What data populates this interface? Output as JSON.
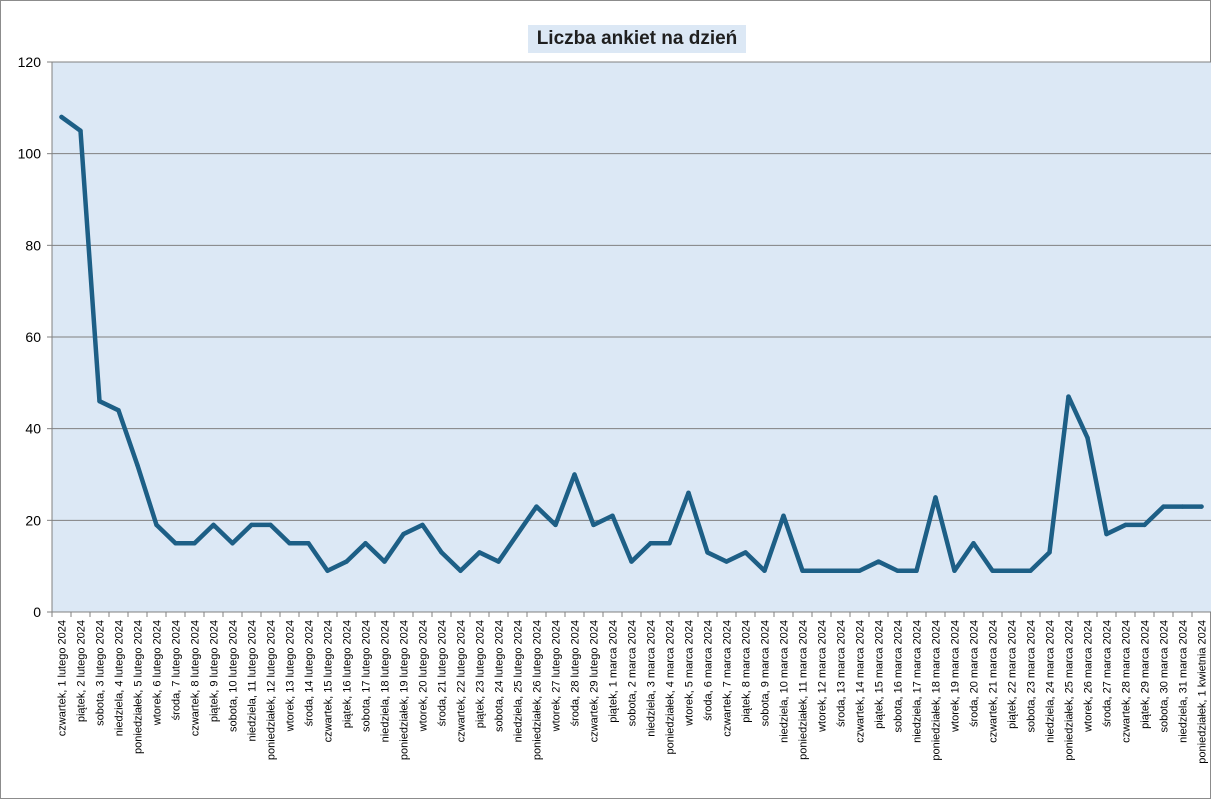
{
  "chart_data": {
    "type": "line",
    "title": "Liczba ankiet na dzień",
    "xlabel": "",
    "ylabel": "",
    "ylim": [
      0,
      120
    ],
    "yticks": [
      "0",
      "20",
      "40",
      "60",
      "80",
      "100",
      "120"
    ],
    "grid": true,
    "legend": "none",
    "colors": {
      "line": "#1d5f86",
      "plot_background": "#dce8f5",
      "gridline": "#808080",
      "title_background": "#dce8f5"
    },
    "categories": [
      "czwartek, 1 lutego 2024",
      "piątek, 2 lutego 2024",
      "sobota, 3 lutego 2024",
      "niedziela, 4 lutego 2024",
      "poniedziałek, 5 lutego 2024",
      "wtorek, 6 lutego 2024",
      "środa, 7 lutego 2024",
      "czwartek, 8 lutego 2024",
      "piątek, 9 lutego 2024",
      "sobota, 10 lutego 2024",
      "niedziela, 11 lutego 2024",
      "poniedziałek, 12 lutego 2024",
      "wtorek, 13 lutego 2024",
      "środa, 14 lutego 2024",
      "czwartek, 15 lutego 2024",
      "piątek, 16 lutego 2024",
      "sobota, 17 lutego 2024",
      "niedziela, 18 lutego 2024",
      "poniedziałek, 19 lutego 2024",
      "wtorek, 20 lutego 2024",
      "środa, 21 lutego 2024",
      "czwartek, 22 lutego 2024",
      "piątek, 23 lutego 2024",
      "sobota, 24 lutego 2024",
      "niedziela, 25 lutego 2024",
      "poniedziałek, 26 lutego 2024",
      "wtorek, 27 lutego 2024",
      "środa, 28 lutego 2024",
      "czwartek, 29 lutego 2024",
      "piątek, 1 marca 2024",
      "sobota, 2 marca 2024",
      "niedziela, 3 marca 2024",
      "poniedziałek, 4 marca 2024",
      "wtorek, 5 marca 2024",
      "środa, 6 marca 2024",
      "czwartek, 7 marca 2024",
      "piątek, 8 marca 2024",
      "sobota, 9 marca 2024",
      "niedziela, 10 marca 2024",
      "poniedziałek, 11 marca 2024",
      "wtorek, 12 marca 2024",
      "środa, 13 marca 2024",
      "czwartek, 14 marca 2024",
      "piątek, 15 marca 2024",
      "sobota, 16 marca 2024",
      "niedziela, 17 marca 2024",
      "poniedziałek, 18 marca 2024",
      "wtorek, 19 marca 2024",
      "środa, 20 marca 2024",
      "czwartek, 21 marca 2024",
      "piątek, 22 marca 2024",
      "sobota, 23 marca 2024",
      "niedziela, 24 marca 2024",
      "poniedziałek, 25 marca 2024",
      "wtorek, 26 marca 2024",
      "środa, 27 marca 2024",
      "czwartek, 28 marca 2024",
      "piątek, 29 marca 2024",
      "sobota, 30 marca 2024",
      "niedziela, 31 marca 2024",
      "poniedziałek, 1 kwietnia 2024"
    ],
    "values": [
      108,
      105,
      46,
      44,
      32,
      19,
      15,
      15,
      19,
      15,
      19,
      19,
      15,
      15,
      9,
      11,
      15,
      11,
      17,
      19,
      13,
      9,
      13,
      11,
      17,
      23,
      19,
      30,
      19,
      21,
      11,
      15,
      15,
      26,
      13,
      11,
      13,
      9,
      21,
      9,
      9,
      9,
      9,
      11,
      9,
      9,
      25,
      9,
      15,
      9,
      9,
      9,
      13,
      47,
      38,
      17,
      19,
      19,
      23,
      23,
      23
    ]
  }
}
